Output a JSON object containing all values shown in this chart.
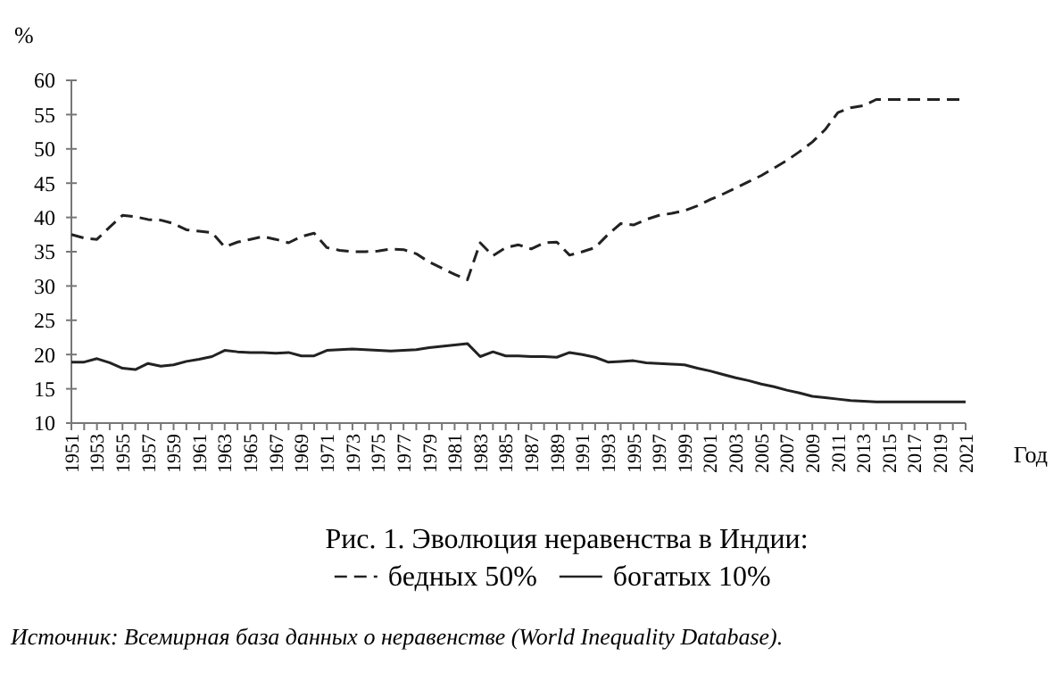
{
  "chart_data": {
    "type": "line",
    "title": "Рис. 1. Эволюция неравенства в Индии:",
    "ylabel": "%",
    "xlabel": "Год",
    "annotations": [
      "Источник: Всемирная база данных о неравенстве (World Inequality Database)."
    ],
    "x": [
      1951,
      1952,
      1953,
      1954,
      1955,
      1956,
      1957,
      1958,
      1959,
      1960,
      1961,
      1962,
      1963,
      1964,
      1965,
      1966,
      1967,
      1968,
      1969,
      1970,
      1971,
      1972,
      1973,
      1974,
      1975,
      1976,
      1977,
      1978,
      1979,
      1980,
      1981,
      1982,
      1983,
      1984,
      1985,
      1986,
      1987,
      1988,
      1989,
      1990,
      1991,
      1992,
      1993,
      1994,
      1995,
      1996,
      1997,
      1998,
      1999,
      2000,
      2001,
      2002,
      2003,
      2004,
      2005,
      2006,
      2007,
      2008,
      2009,
      2010,
      2011,
      2012,
      2013,
      2014,
      2015,
      2016,
      2017,
      2018,
      2019,
      2020,
      2021
    ],
    "series": [
      {
        "name": "бедных 50%",
        "color": "#222222",
        "line_style": "dashed",
        "values": [
          37.5,
          37.0,
          36.8,
          38.6,
          40.3,
          40.1,
          39.7,
          39.6,
          39.1,
          38.2,
          38.0,
          37.8,
          35.7,
          36.4,
          36.8,
          37.2,
          36.8,
          36.3,
          37.2,
          37.7,
          35.6,
          35.2,
          35.0,
          35.0,
          35.1,
          35.4,
          35.3,
          34.7,
          33.5,
          32.6,
          31.7,
          30.9,
          36.3,
          34.4,
          35.6,
          36.0,
          35.4,
          36.3,
          36.4,
          34.5,
          35.0,
          35.6,
          37.5,
          39.1,
          38.9,
          39.7,
          40.3,
          40.6,
          41.0,
          41.7,
          42.6,
          43.4,
          44.3,
          45.2,
          46.1,
          47.2,
          48.3,
          49.6,
          51.0,
          52.8,
          55.3,
          56.0,
          56.3,
          57.2,
          57.2,
          57.2,
          57.2,
          57.2,
          57.2,
          57.2,
          57.2
        ]
      },
      {
        "name": "богатых 10%",
        "color": "#222222",
        "line_style": "solid",
        "values": [
          18.9,
          18.9,
          19.4,
          18.8,
          18.0,
          17.8,
          18.7,
          18.3,
          18.5,
          19.0,
          19.3,
          19.7,
          20.6,
          20.4,
          20.3,
          20.3,
          20.2,
          20.3,
          19.8,
          19.8,
          20.6,
          20.7,
          20.8,
          20.7,
          20.6,
          20.5,
          20.6,
          20.7,
          21.0,
          21.2,
          21.4,
          21.6,
          19.7,
          20.4,
          19.8,
          19.8,
          19.7,
          19.7,
          19.6,
          20.3,
          20.0,
          19.6,
          18.9,
          19.0,
          19.1,
          18.8,
          18.7,
          18.6,
          18.5,
          18.0,
          17.6,
          17.1,
          16.6,
          16.2,
          15.7,
          15.3,
          14.8,
          14.4,
          13.9,
          13.7,
          13.5,
          13.3,
          13.2,
          13.1,
          13.1,
          13.1,
          13.1,
          13.1,
          13.1,
          13.1,
          13.1
        ]
      }
    ],
    "xlim": [
      1951,
      2021
    ],
    "xticks": [
      1951,
      1953,
      1955,
      1957,
      1959,
      1961,
      1963,
      1965,
      1967,
      1969,
      1971,
      1973,
      1975,
      1977,
      1979,
      1981,
      1983,
      1985,
      1987,
      1989,
      1991,
      1993,
      1995,
      1997,
      1999,
      2001,
      2003,
      2005,
      2007,
      2009,
      2011,
      2013,
      2015,
      2017,
      2019,
      2021
    ],
    "ylim": [
      10,
      60
    ],
    "yticks": [
      10,
      15,
      20,
      25,
      30,
      35,
      40,
      45,
      50,
      55,
      60
    ],
    "grid": false,
    "legend": "bottom",
    "marker": "none"
  }
}
